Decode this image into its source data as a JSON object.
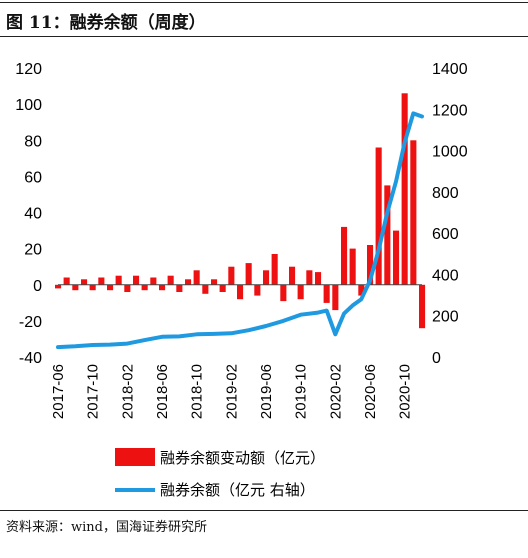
{
  "header": {
    "title": "图 11：融券余额（周度）"
  },
  "footer": {
    "source": "资料来源：wind，国海证券研究所"
  },
  "colors": {
    "bar": "#ee1111",
    "line": "#1f9ae0"
  },
  "chart_data": {
    "type": "bar+line",
    "title": "",
    "xlabel": "",
    "ylabel": "",
    "left_axis": {
      "ylim": [
        -40,
        120
      ],
      "ticks": [
        "120",
        "100",
        "80",
        "60",
        "40",
        "20",
        "0",
        "-20",
        "-40"
      ]
    },
    "right_axis": {
      "ylim": [
        0,
        1400
      ],
      "ticks": [
        "1400",
        "1200",
        "1000",
        "800",
        "600",
        "400",
        "200",
        "0"
      ]
    },
    "x_ticks": [
      "2017-06",
      "2017-10",
      "2018-02",
      "2018-06",
      "2018-10",
      "2019-02",
      "2019-06",
      "2019-10",
      "2020-02",
      "2020-06",
      "2020-10"
    ],
    "x_range": [
      "2017-06",
      "2020-12"
    ],
    "legend_placement": "bottom",
    "series": [
      {
        "name": "融券余额变动额（亿元）",
        "kind": "bar",
        "axis": "left",
        "points": [
          [
            "2017-06",
            -2
          ],
          [
            "2017-07",
            4
          ],
          [
            "2017-08",
            -3
          ],
          [
            "2017-09",
            3
          ],
          [
            "2017-10",
            -3
          ],
          [
            "2017-11",
            4
          ],
          [
            "2017-12",
            -3
          ],
          [
            "2018-01",
            5
          ],
          [
            "2018-02",
            -4
          ],
          [
            "2018-03",
            5
          ],
          [
            "2018-04",
            -3
          ],
          [
            "2018-05",
            4
          ],
          [
            "2018-06",
            -3
          ],
          [
            "2018-07",
            5
          ],
          [
            "2018-08",
            -4
          ],
          [
            "2018-09",
            3
          ],
          [
            "2018-10",
            8
          ],
          [
            "2018-11",
            -5
          ],
          [
            "2018-12",
            3
          ],
          [
            "2019-01",
            -4
          ],
          [
            "2019-02",
            10
          ],
          [
            "2019-03",
            -8
          ],
          [
            "2019-04",
            12
          ],
          [
            "2019-05",
            -6
          ],
          [
            "2019-06",
            8
          ],
          [
            "2019-07",
            17
          ],
          [
            "2019-08",
            -9
          ],
          [
            "2019-09",
            10
          ],
          [
            "2019-10",
            -8
          ],
          [
            "2019-11",
            8
          ],
          [
            "2019-12",
            7
          ],
          [
            "2020-01",
            -10
          ],
          [
            "2020-02",
            -14
          ],
          [
            "2020-03",
            32
          ],
          [
            "2020-04",
            20
          ],
          [
            "2020-05",
            -6
          ],
          [
            "2020-06",
            22
          ],
          [
            "2020-07",
            76
          ],
          [
            "2020-08",
            55
          ],
          [
            "2020-09",
            30
          ],
          [
            "2020-10",
            106
          ],
          [
            "2020-11",
            80
          ],
          [
            "2020-12",
            -24
          ]
        ]
      },
      {
        "name": "融券余额（亿元 右轴）",
        "kind": "line",
        "axis": "right",
        "points": [
          [
            "2017-06",
            48
          ],
          [
            "2017-08",
            52
          ],
          [
            "2017-10",
            58
          ],
          [
            "2017-12",
            60
          ],
          [
            "2018-02",
            65
          ],
          [
            "2018-04",
            82
          ],
          [
            "2018-06",
            98
          ],
          [
            "2018-08",
            100
          ],
          [
            "2018-10",
            110
          ],
          [
            "2018-12",
            112
          ],
          [
            "2019-02",
            115
          ],
          [
            "2019-04",
            130
          ],
          [
            "2019-06",
            150
          ],
          [
            "2019-08",
            175
          ],
          [
            "2019-10",
            205
          ],
          [
            "2019-12",
            215
          ],
          [
            "2020-01",
            225
          ],
          [
            "2020-02",
            110
          ],
          [
            "2020-03",
            210
          ],
          [
            "2020-04",
            250
          ],
          [
            "2020-05",
            280
          ],
          [
            "2020-06",
            370
          ],
          [
            "2020-07",
            520
          ],
          [
            "2020-08",
            700
          ],
          [
            "2020-09",
            850
          ],
          [
            "2020-10",
            1040
          ],
          [
            "2020-11",
            1180
          ],
          [
            "2020-12",
            1165
          ]
        ]
      }
    ]
  }
}
